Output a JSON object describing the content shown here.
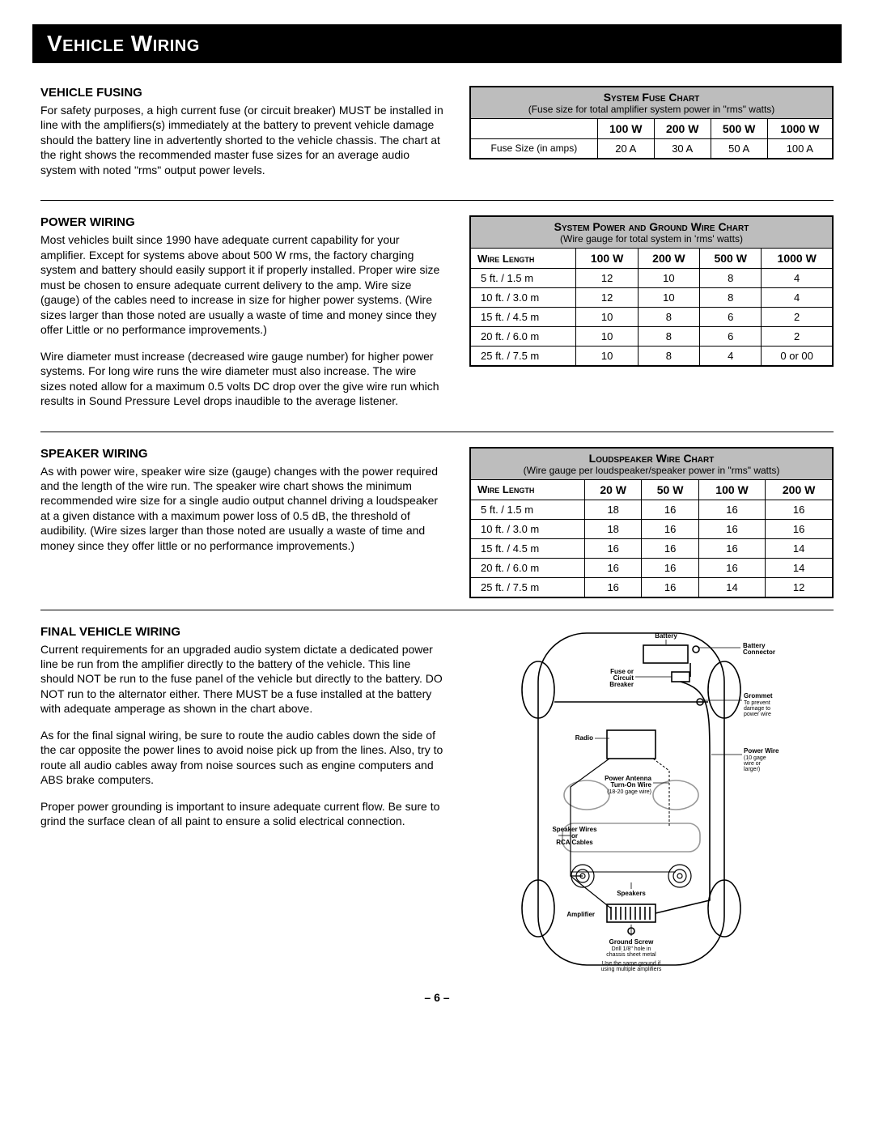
{
  "page_title": "Vehicle Wiring",
  "page_number": "– 6 –",
  "sections": {
    "fusing": {
      "heading": "VEHICLE FUSING",
      "p1": "For safety purposes, a high current fuse (or circuit breaker) MUST be installed in line with the amplifiers(s) immediately at the battery to prevent vehicle damage should the battery line in advertently shorted to the vehicle chassis.  The chart at the right shows the recommended master fuse sizes for an average audio system with noted \"rms\" output power levels."
    },
    "power": {
      "heading": "POWER WIRING",
      "p1": "Most vehicles built since 1990 have adequate current capability for your amplifier.  Except for systems above about 500 W rms, the factory charging system and battery should easily support it if properly installed.  Proper wire size must be chosen to ensure adequate current delivery to the amp.  Wire size (gauge) of the cables need to increase in size for higher power systems.  (Wire sizes larger than those noted are usually a waste of time and money since they offer Little or no performance improvements.)",
      "p2": "Wire diameter must increase (decreased wire gauge number) for higher power systems.  For long wire runs the wire diameter must also increase.  The wire sizes noted allow for a maximum 0.5 volts DC drop over the give wire run which results in Sound Pressure Level drops inaudible to the average listener."
    },
    "speaker": {
      "heading": "SPEAKER WIRING",
      "p1": "As with power wire, speaker wire size (gauge) changes with the power required and the length of the wire run.  The speaker wire chart shows the minimum recommended wire size for a single audio output channel driving a loudspeaker at a given distance with a maximum power loss of 0.5 dB, the threshold of audibility.  (Wire sizes larger than those noted are usually a waste of time and money since they offer little or no performance improvements.)"
    },
    "final": {
      "heading": "FINAL VEHICLE WIRING",
      "p1": "Current requirements for an upgraded audio system dictate a dedicated power line be run from the amplifier directly to the battery of the vehicle.  This line should NOT be run to the fuse panel of the vehicle but directly to the battery.  DO NOT run to the alternator either.  There MUST be a fuse installed at the battery with adequate amperage as shown in the chart above.",
      "p2": "As for the final signal wiring, be sure to route the audio cables down the side of the car opposite the power lines to avoid noise pick up from the lines.  Also, try to route all audio cables away from noise sources such as engine computers and ABS brake computers.",
      "p3": "Proper power grounding is important to insure adequate current flow.  Be sure to grind the surface clean of all paint to ensure a solid electrical connection."
    }
  },
  "fuse_chart": {
    "title": "System Fuse Chart",
    "subtitle": "(Fuse size for total amplifier system power in \"rms\" watts)",
    "columns": [
      "100 W",
      "200 W",
      "500 W",
      "1000 W"
    ],
    "row_label": "Fuse Size (in amps)",
    "row": [
      "20 A",
      "30 A",
      "50 A",
      "100 A"
    ]
  },
  "power_chart": {
    "title": "System Power and Ground Wire Chart",
    "subtitle": "(Wire gauge for total system in 'rms' watts)",
    "col_head": "Wire Length",
    "columns": [
      "100 W",
      "200 W",
      "500 W",
      "1000 W"
    ],
    "rows": [
      {
        "len": "5 ft. / 1.5 m",
        "v": [
          "12",
          "10",
          "8",
          "4"
        ]
      },
      {
        "len": "10 ft. / 3.0 m",
        "v": [
          "12",
          "10",
          "8",
          "4"
        ]
      },
      {
        "len": "15 ft. / 4.5 m",
        "v": [
          "10",
          "8",
          "6",
          "2"
        ]
      },
      {
        "len": "20 ft. / 6.0 m",
        "v": [
          "10",
          "8",
          "6",
          "2"
        ]
      },
      {
        "len": "25 ft. / 7.5 m",
        "v": [
          "10",
          "8",
          "4",
          "0 or 00"
        ]
      }
    ]
  },
  "speaker_chart": {
    "title": "Loudspeaker Wire Chart",
    "subtitle": "(Wire gauge per loudspeaker/speaker power in \"rms\" watts)",
    "col_head": "Wire Length",
    "columns": [
      "20 W",
      "50 W",
      "100 W",
      "200 W"
    ],
    "rows": [
      {
        "len": "5 ft. / 1.5 m",
        "v": [
          "18",
          "16",
          "16",
          "16"
        ]
      },
      {
        "len": "10 ft. / 3.0 m",
        "v": [
          "18",
          "16",
          "16",
          "16"
        ]
      },
      {
        "len": "15 ft. / 4.5 m",
        "v": [
          "16",
          "16",
          "16",
          "14"
        ]
      },
      {
        "len": "20 ft. / 6.0 m",
        "v": [
          "16",
          "16",
          "16",
          "14"
        ]
      },
      {
        "len": "25 ft. / 7.5 m",
        "v": [
          "16",
          "16",
          "14",
          "12"
        ]
      }
    ]
  },
  "diagram": {
    "battery": "Battery",
    "battery_connector": "Battery Connector",
    "fuse": "Fuse or Circuit Breaker",
    "grommet": "Grommet",
    "grommet_sub": "To prevent damage to power wire",
    "radio": "Radio",
    "power_wire": "Power Wire",
    "power_wire_sub": "(10 gage wire or larger)",
    "antenna": "Power Antenna Turn-On Wire",
    "antenna_sub": "(18-20 gage wire)",
    "speaker_wires": "Speaker Wires or RCA Cables",
    "speakers": "Speakers",
    "amplifier": "Amplifier",
    "ground_screw": "Ground Screw",
    "ground_sub1": "Drill 1/8\" hole in chassis sheet metal",
    "ground_sub2": "Use the same ground if using multiple amplifiers"
  }
}
